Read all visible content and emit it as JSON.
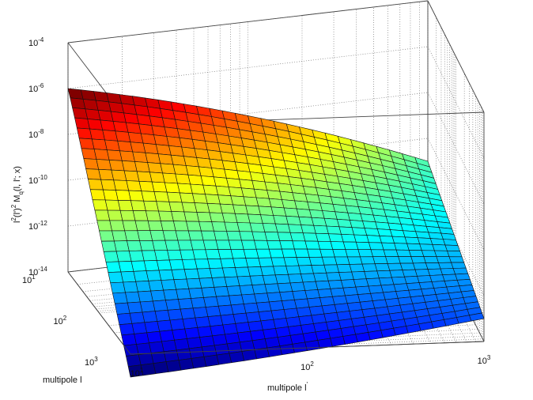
{
  "chart_data": {
    "type": "surface",
    "title": "",
    "colormap": "jet",
    "grid": true,
    "box": true,
    "xlabel": "multipole l'",
    "ylabel": "multipole l",
    "zlabel": "l^2(l')^2 M_q(l,l';x)",
    "xlabel_parts": {
      "base": "multipole l",
      "prime": "'"
    },
    "zlabel_parts": {
      "a": "l",
      "a_sup": "2",
      "b": "(l')",
      "b_sup": "2",
      "c": " M",
      "c_sub": "q",
      "d": "(l, l'; x)"
    },
    "x_scale": "log",
    "y_scale": "log",
    "z_scale": "log",
    "xlim": [
      10,
      1000
    ],
    "ylim": [
      10,
      1000
    ],
    "zlim": [
      1e-14,
      0.0001
    ],
    "x_ticks": [
      {
        "base": "10",
        "exp": "1"
      },
      {
        "base": "10",
        "exp": "2"
      },
      {
        "base": "10",
        "exp": "3"
      }
    ],
    "y_ticks": [
      {
        "base": "10",
        "exp": "1"
      },
      {
        "base": "10",
        "exp": "2"
      },
      {
        "base": "10",
        "exp": "3"
      }
    ],
    "z_ticks": [
      {
        "base": "10",
        "exp": "-4"
      },
      {
        "base": "10",
        "exp": "-6"
      },
      {
        "base": "10",
        "exp": "-8"
      },
      {
        "base": "10",
        "exp": "-10"
      },
      {
        "base": "10",
        "exp": "-12"
      },
      {
        "base": "10",
        "exp": "-14"
      }
    ],
    "corner_values": [
      {
        "l_prime": 10,
        "l": 10,
        "z": 1e-06
      },
      {
        "l_prime": 1000,
        "l": 10,
        "z": 1e-11
      },
      {
        "l_prime": 10,
        "l": 1000,
        "z": 1e-15
      },
      {
        "l_prime": 1000,
        "l": 1000,
        "z": 1e-13
      }
    ]
  }
}
